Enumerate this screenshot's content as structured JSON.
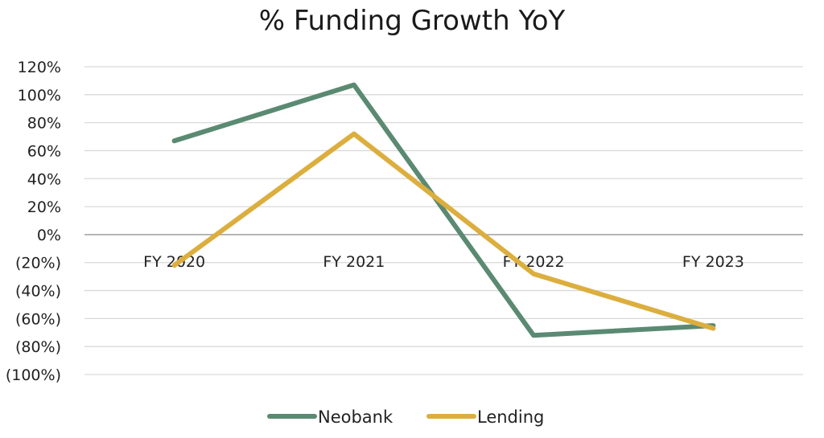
{
  "chart_data": {
    "type": "line",
    "title": "% Funding Growth YoY",
    "categories": [
      "FY 2020",
      "FY 2021",
      "FY 2022",
      "FY 2023"
    ],
    "series": [
      {
        "name": "Neobank",
        "values": [
          67,
          107,
          -72,
          -65
        ],
        "color": "#5b8a72"
      },
      {
        "name": "Lending",
        "values": [
          -22,
          72,
          -28,
          -67
        ],
        "color": "#dcae3e"
      }
    ],
    "ylim": [
      -100,
      120
    ],
    "yticks": [
      120,
      100,
      80,
      60,
      40,
      20,
      0,
      -20,
      -40,
      -60,
      -80,
      -100
    ],
    "ytick_labels": [
      "120%",
      "100%",
      "80%",
      "60%",
      "40%",
      "20%",
      "0%",
      "(20%)",
      "(40%)",
      "(60%)",
      "(80%)",
      "(100%)"
    ],
    "grid": true,
    "legend_position": "bottom",
    "gridline_color": "#d9d9d9",
    "zero_line_color": "#a6a6a6"
  }
}
